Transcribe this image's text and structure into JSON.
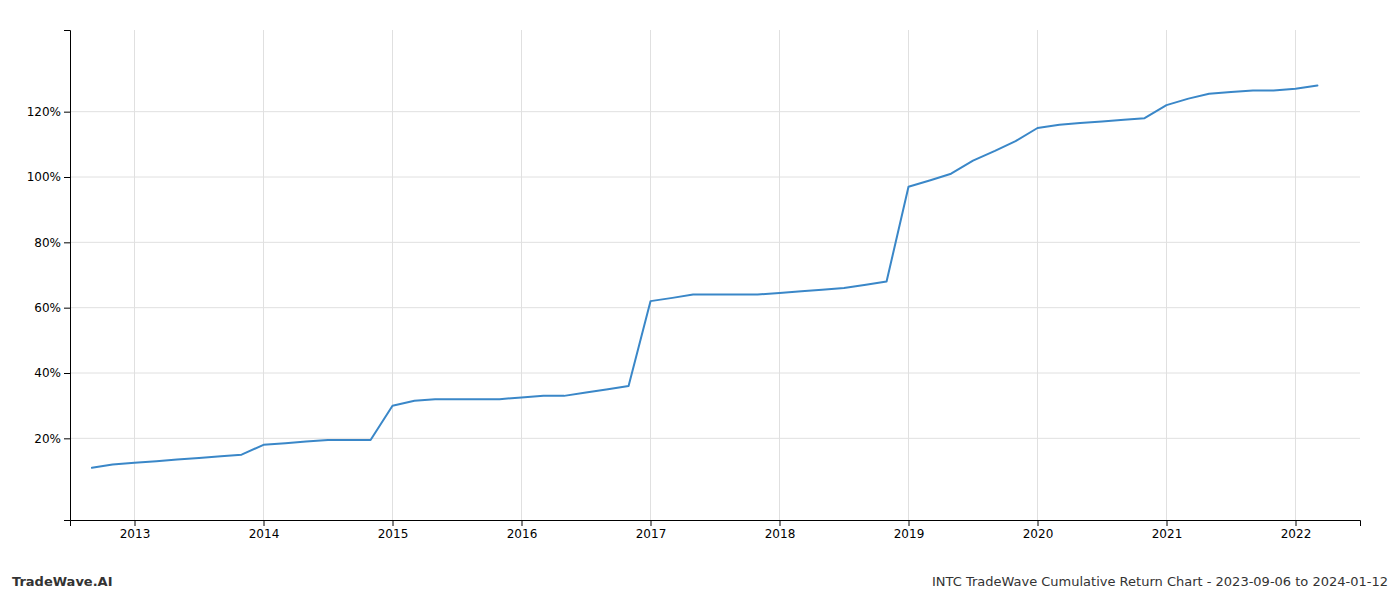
{
  "chart_data": {
    "type": "line",
    "title": "INTC TradeWave Cumulative Return Chart - 2023-09-06 to 2024-01-12",
    "annotations": [
      "TradeWave.AI"
    ],
    "color": "#3a87c8",
    "grid": true,
    "x": [
      2012.67,
      2012.83,
      2013.0,
      2013.17,
      2013.33,
      2013.5,
      2013.67,
      2013.83,
      2014.0,
      2014.17,
      2014.33,
      2014.5,
      2014.67,
      2014.83,
      2015.0,
      2015.17,
      2015.33,
      2015.5,
      2015.67,
      2015.83,
      2016.0,
      2016.17,
      2016.33,
      2016.5,
      2016.67,
      2016.83,
      2017.0,
      2017.17,
      2017.33,
      2017.5,
      2017.67,
      2017.83,
      2018.0,
      2018.17,
      2018.33,
      2018.5,
      2018.67,
      2018.83,
      2019.0,
      2019.17,
      2019.33,
      2019.5,
      2019.67,
      2019.83,
      2020.0,
      2020.17,
      2020.33,
      2020.5,
      2020.67,
      2020.83,
      2021.0,
      2021.17,
      2021.33,
      2021.5,
      2021.67,
      2021.83,
      2022.0,
      2022.17
    ],
    "values": [
      11,
      12,
      12.5,
      13,
      13.5,
      14,
      14.5,
      15,
      18,
      18.5,
      19,
      19.5,
      19.5,
      19.5,
      30,
      31.5,
      32,
      32,
      32,
      32,
      32.5,
      33,
      33,
      34,
      35,
      36,
      62,
      63,
      64,
      64,
      64,
      64,
      64.5,
      65,
      65.5,
      66,
      67,
      68,
      97,
      99,
      101,
      105,
      108,
      111,
      115,
      116,
      116.5,
      117,
      117.5,
      118,
      122,
      124,
      125.5,
      126,
      126.5,
      126.5,
      127,
      128
    ],
    "xlim": [
      2012.5,
      2022.5
    ],
    "xticks": [
      2013,
      2014,
      2015,
      2016,
      2017,
      2018,
      2019,
      2020,
      2021,
      2022
    ],
    "ylim": [
      -5,
      145
    ],
    "yticks": [
      {
        "value": 20,
        "label": "20%"
      },
      {
        "value": 40,
        "label": "40%"
      },
      {
        "value": 60,
        "label": "60%"
      },
      {
        "value": 80,
        "label": "80%"
      },
      {
        "value": 100,
        "label": "100%"
      },
      {
        "value": 120,
        "label": "120%"
      }
    ]
  }
}
